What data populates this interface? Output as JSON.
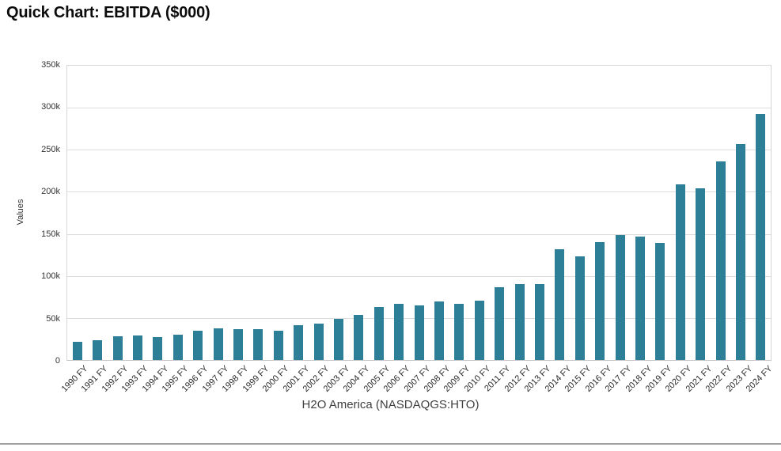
{
  "header": {
    "title": "Quick Chart: EBITDA ($000)"
  },
  "chart_data": {
    "type": "bar",
    "title": "Quick Chart: EBITDA ($000)",
    "xlabel": "H2O America (NASDAQGS:HTO)",
    "ylabel": "Values",
    "ylim": [
      0,
      350000
    ],
    "y_tick_labels": [
      "0",
      "50k",
      "100k",
      "150k",
      "200k",
      "250k",
      "300k",
      "350k"
    ],
    "y_tick_values": [
      0,
      50000,
      100000,
      150000,
      200000,
      250000,
      300000,
      350000
    ],
    "grid": "horizontal",
    "legend_position": "none",
    "bar_color": "#2d7f97",
    "categories": [
      "1990 FY",
      "1991 FY",
      "1992 FY",
      "1993 FY",
      "1994 FY",
      "1995 FY",
      "1996 FY",
      "1997 FY",
      "1998 FY",
      "1999 FY",
      "2000 FY",
      "2001 FY",
      "2002 FY",
      "2003 FY",
      "2004 FY",
      "2005 FY",
      "2006 FY",
      "2007 FY",
      "2008 FY",
      "2009 FY",
      "2010 FY",
      "2011 FY",
      "2012 FY",
      "2013 FY",
      "2014 FY",
      "2015 FY",
      "2016 FY",
      "2017 FY",
      "2018 FY",
      "2019 FY",
      "2020 FY",
      "2021 FY",
      "2022 FY",
      "2023 FY",
      "2024 FY"
    ],
    "values": [
      22000,
      24000,
      28000,
      29000,
      27000,
      30000,
      35000,
      38000,
      37000,
      37000,
      35000,
      41000,
      43000,
      49000,
      54000,
      63000,
      67000,
      65000,
      70000,
      67000,
      71000,
      87000,
      90000,
      90000,
      132000,
      123000,
      140000,
      149000,
      147000,
      139000,
      209000,
      204000,
      236000,
      257000,
      293000
    ]
  }
}
